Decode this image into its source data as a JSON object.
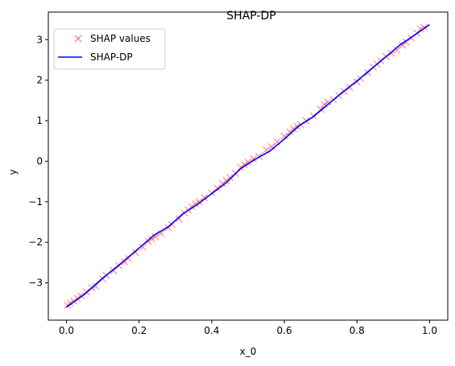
{
  "chart_data": {
    "type": "scatter",
    "title": "SHAP-DP",
    "xlabel": "x_0",
    "ylabel": "y",
    "xlim": [
      -0.05,
      1.05
    ],
    "ylim": [
      -3.92,
      3.68
    ],
    "xticks": [
      0.0,
      0.2,
      0.4,
      0.6,
      0.8,
      1.0
    ],
    "xtick_labels": [
      "0.0",
      "0.2",
      "0.4",
      "0.6",
      "0.8",
      "1.0"
    ],
    "yticks": [
      -3,
      -2,
      -1,
      0,
      1,
      2,
      3
    ],
    "ytick_labels": [
      "−3",
      "−2",
      "−1",
      "0",
      "1",
      "2",
      "3"
    ],
    "legend": {
      "placement": "top-left",
      "entries": [
        "SHAP values",
        "SHAP-DP"
      ]
    },
    "series": [
      {
        "name": "SHAP values",
        "kind": "scatter",
        "marker": "x",
        "color": "#ff6b6b",
        "points": [
          [
            0.003,
            -3.55
          ],
          [
            0.01,
            -3.5
          ],
          [
            0.02,
            -3.45
          ],
          [
            0.03,
            -3.38
          ],
          [
            0.04,
            -3.32
          ],
          [
            0.055,
            -3.22
          ],
          [
            0.07,
            -3.12
          ],
          [
            0.08,
            -3.08
          ],
          [
            0.1,
            -2.9
          ],
          [
            0.11,
            -2.82
          ],
          [
            0.13,
            -2.7
          ],
          [
            0.145,
            -2.58
          ],
          [
            0.16,
            -2.48
          ],
          [
            0.17,
            -2.4
          ],
          [
            0.19,
            -2.25
          ],
          [
            0.21,
            -2.12
          ],
          [
            0.225,
            -1.98
          ],
          [
            0.235,
            -1.92
          ],
          [
            0.245,
            -1.86
          ],
          [
            0.26,
            -1.78
          ],
          [
            0.28,
            -1.64
          ],
          [
            0.29,
            -1.56
          ],
          [
            0.31,
            -1.42
          ],
          [
            0.325,
            -1.28
          ],
          [
            0.335,
            -1.2
          ],
          [
            0.345,
            -1.12
          ],
          [
            0.355,
            -1.05
          ],
          [
            0.365,
            -1.0
          ],
          [
            0.38,
            -0.9
          ],
          [
            0.4,
            -0.78
          ],
          [
            0.415,
            -0.66
          ],
          [
            0.43,
            -0.55
          ],
          [
            0.44,
            -0.48
          ],
          [
            0.45,
            -0.4
          ],
          [
            0.465,
            -0.3
          ],
          [
            0.48,
            -0.15
          ],
          [
            0.49,
            -0.08
          ],
          [
            0.5,
            -0.02
          ],
          [
            0.515,
            0.06
          ],
          [
            0.53,
            0.12
          ],
          [
            0.55,
            0.28
          ],
          [
            0.565,
            0.36
          ],
          [
            0.58,
            0.48
          ],
          [
            0.6,
            0.62
          ],
          [
            0.615,
            0.72
          ],
          [
            0.625,
            0.8
          ],
          [
            0.635,
            0.86
          ],
          [
            0.645,
            0.9
          ],
          [
            0.66,
            1.0
          ],
          [
            0.68,
            1.12
          ],
          [
            0.7,
            1.28
          ],
          [
            0.71,
            1.4
          ],
          [
            0.72,
            1.46
          ],
          [
            0.735,
            1.52
          ],
          [
            0.75,
            1.62
          ],
          [
            0.765,
            1.72
          ],
          [
            0.78,
            1.82
          ],
          [
            0.8,
            1.96
          ],
          [
            0.81,
            2.04
          ],
          [
            0.83,
            2.18
          ],
          [
            0.845,
            2.32
          ],
          [
            0.855,
            2.4
          ],
          [
            0.865,
            2.48
          ],
          [
            0.88,
            2.58
          ],
          [
            0.895,
            2.66
          ],
          [
            0.91,
            2.74
          ],
          [
            0.925,
            2.86
          ],
          [
            0.935,
            2.94
          ],
          [
            0.95,
            3.04
          ],
          [
            0.965,
            3.16
          ],
          [
            0.975,
            3.26
          ],
          [
            0.985,
            3.3
          ]
        ]
      },
      {
        "name": "SHAP-DP",
        "kind": "line",
        "color": "#0000ff",
        "points": [
          [
            0.0,
            -3.6
          ],
          [
            0.05,
            -3.28
          ],
          [
            0.1,
            -2.88
          ],
          [
            0.15,
            -2.52
          ],
          [
            0.2,
            -2.14
          ],
          [
            0.24,
            -1.83
          ],
          [
            0.28,
            -1.62
          ],
          [
            0.32,
            -1.3
          ],
          [
            0.36,
            -1.07
          ],
          [
            0.4,
            -0.8
          ],
          [
            0.44,
            -0.53
          ],
          [
            0.48,
            -0.18
          ],
          [
            0.52,
            0.05
          ],
          [
            0.56,
            0.25
          ],
          [
            0.6,
            0.55
          ],
          [
            0.64,
            0.87
          ],
          [
            0.68,
            1.1
          ],
          [
            0.72,
            1.4
          ],
          [
            0.76,
            1.7
          ],
          [
            0.8,
            1.98
          ],
          [
            0.84,
            2.28
          ],
          [
            0.88,
            2.58
          ],
          [
            0.92,
            2.88
          ],
          [
            0.96,
            3.12
          ],
          [
            1.0,
            3.37
          ]
        ]
      }
    ]
  }
}
